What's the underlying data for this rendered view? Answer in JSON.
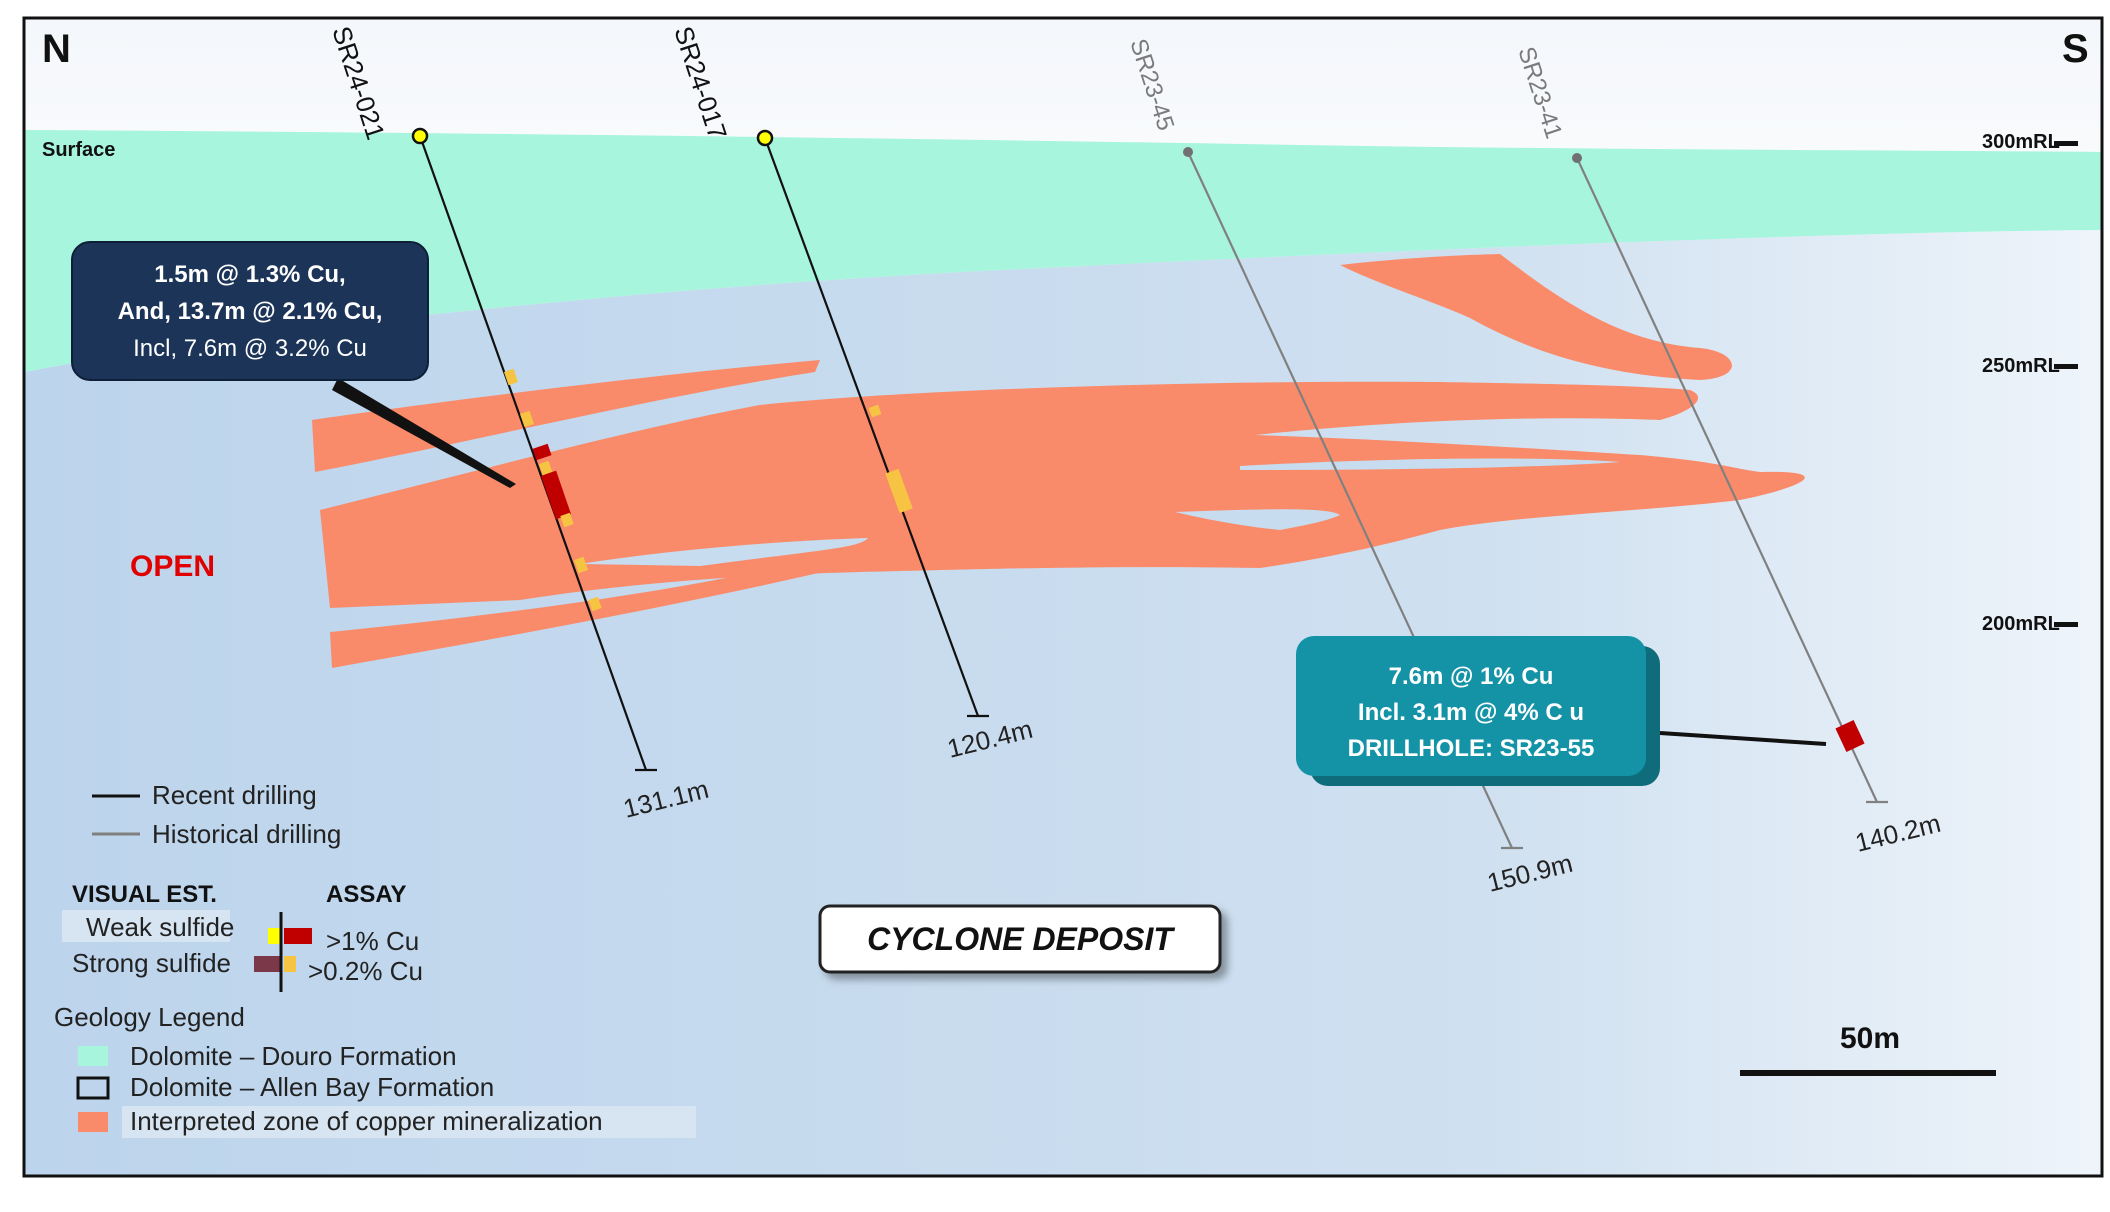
{
  "compass": {
    "north": "N",
    "south": "S"
  },
  "surface_label": "Surface",
  "open_label": "OPEN",
  "rl_labels": [
    "300mRL",
    "250mRL",
    "200mRL"
  ],
  "drillholes": [
    {
      "name": "SR24-021",
      "type": "recent",
      "depth": "131.1m"
    },
    {
      "name": "SR24-017",
      "type": "recent",
      "depth": "120.4m"
    },
    {
      "name": "SR23-45",
      "type": "historical",
      "depth": "150.9m"
    },
    {
      "name": "SR23-41",
      "type": "historical",
      "depth": "140.2m"
    }
  ],
  "callouts": {
    "left": {
      "line1": "1.5m @ 1.3% Cu,",
      "line2": "And, 13.7m @ 2.1% Cu,",
      "line3": "Incl, 7.6m @ 3.2% Cu"
    },
    "right": {
      "line1": "7.6m @ 1% Cu",
      "line2": "Incl. 3.1m @ 4% C u",
      "line3": "DRILLHOLE: SR23-55"
    }
  },
  "legend": {
    "recent": "Recent drilling",
    "historical": "Historical drilling",
    "visual_est": "VISUAL EST.",
    "assay": "ASSAY",
    "weak": "Weak sulfide",
    "strong": "Strong sulfide",
    "gt1": ">1% Cu",
    "gt02": ">0.2% Cu",
    "geology_title": "Geology Legend",
    "douro": "Dolomite – Douro Formation",
    "allen": "Dolomite – Allen Bay Formation",
    "zone": "Interpreted zone of copper mineralization"
  },
  "deposit_title": "CYCLONE DEPOSIT",
  "scale_label": "50m",
  "colors": {
    "douro": "#a6f5dc",
    "background": "#c7dcef",
    "zone": "#f98b6a",
    "high_grade": "#c00000",
    "low_grade": "#f6c342",
    "callout_left": "#1b3458",
    "callout_right": "#1493a7",
    "strong_sulfide": "#7b3848",
    "weak_sulfide": "#ffff00"
  }
}
